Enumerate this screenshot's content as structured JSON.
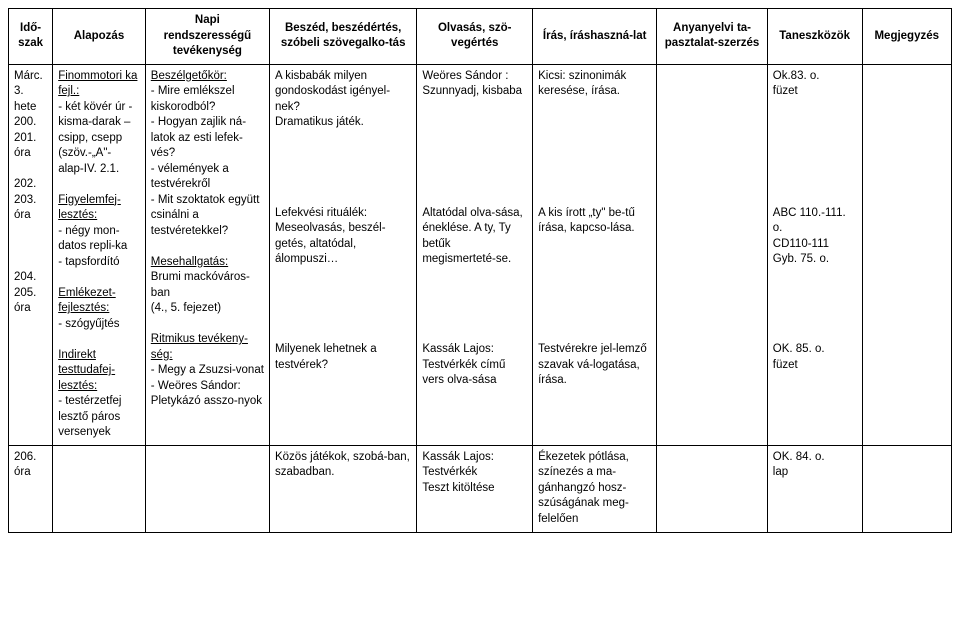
{
  "headers": {
    "c1": "Idő-szak",
    "c2": "Alapozás",
    "c3": "Napi rendszerességű tevékenység",
    "c4": "Beszéd, beszédértés, szóbeli szövegalko-tás",
    "c5": "Olvasás, szö-vegértés",
    "c6": "Írás, íráshaszná-lat",
    "c7": "Anyanyelvi ta-pasztalat-szerzés",
    "c8": "Taneszközök",
    "c9": "Megjegyzés"
  },
  "r1": {
    "time": "Márc. 3. hete 200. 201. óra",
    "alap_head": "Finommotori ka fejl.:",
    "alap_body": "- két kövér úr - kisma-darak – csipp, csepp (szöv.-„A\"- alap-IV. 2.1.",
    "napi_head": "Beszélgetőkör:",
    "napi_body": "- Mire emlékszel kiskorodból?\n- Hogyan zajlik ná-latok az esti lefek-vés?\n- vélemények a testvérekről\n- Mit szoktatok együtt csinálni a testvéretekkel?",
    "beszed": "A kisbabák milyen gondoskodást igényel-nek?\nDramatikus játék.",
    "olvasas": "Weöres Sándor : Szunnyadj, kisbaba",
    "iras": "Kicsi: szinonimák keresése, írása.",
    "tan": "Ok.83. o.\nfüzet"
  },
  "r2": {
    "time": "202. 203. óra",
    "alap_head": "Figyelemfej-lesztés:",
    "alap_body": "- négy mon-datos repli-ka\n- tapsfordító",
    "alap_head2": "Emlékezet-fejlesztés:",
    "alap_body2": "- szógyűjtés",
    "napi_head": "Mesehallgatás:",
    "napi_body": "Brumi mackóváros-ban\n(4., 5. fejezet)",
    "napi_head2": "Ritmikus tevékeny-ség:",
    "beszed": "Lefekvési rituálék:\nMeseolvasás, beszél-getés, altatódal, álompuszi…",
    "olvasas": "Altatódal olva-sása, éneklése. A ty, Ty betűk megismerteté-se.",
    "iras": "A kis írott „ty\" be-tű írása, kapcso-lása.",
    "tan": "ABC 110.-111. o.\nCD110-111\nGyb. 75. o."
  },
  "r3": {
    "time": "204. 205. óra",
    "alap_head": "Indirekt testtudafej-lesztés:",
    "alap_body": "- testérzetfej lesztő páros versenyek",
    "napi_body": "- Megy a Zsuzsi-vonat\n- Weöres Sándor: Pletykázó asszo-nyok",
    "beszed": "Milyenek lehetnek a testvérek?",
    "olvasas": "Kassák Lajos: Testvérkék című vers olva-sása",
    "iras": "Testvérekre jel-lemző szavak vá-logatása, írása.",
    "tan": "OK. 85. o.\nfüzet"
  },
  "r4": {
    "time": "206. óra",
    "beszed": "Közös játékok, szobá-ban, szabadban.",
    "olvasas": "Kassák Lajos: Testvérkék\nTeszt kitöltése",
    "iras": "Ékezetek pótlása, színezés a ma-gánhangzó hosz-szúságának meg-felelően",
    "tan": "OK. 84. o.\nlap"
  }
}
